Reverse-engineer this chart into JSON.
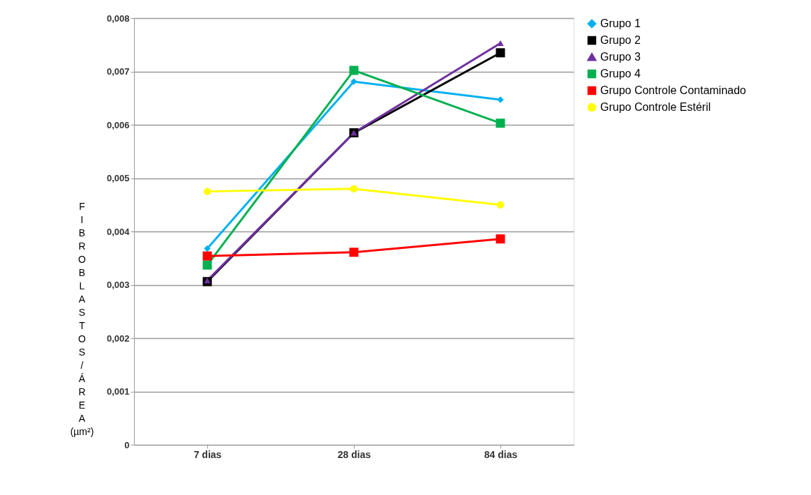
{
  "chart_data": {
    "type": "line",
    "ylabel": "FIBROBLASTOS/ÁREA (µm²)",
    "categories": [
      "7 dias",
      "28 dias",
      "84 dias"
    ],
    "series": [
      {
        "name": "Grupo 1",
        "color": "#00b0f0",
        "marker": "diamond",
        "values": [
          0.00368,
          0.00681,
          0.00647
        ]
      },
      {
        "name": "Grupo 2",
        "color": "#000000",
        "marker": "square",
        "values": [
          0.00306,
          0.00585,
          0.00735
        ]
      },
      {
        "name": "Grupo 3",
        "color": "#7030a0",
        "marker": "triangle",
        "values": [
          0.00308,
          0.00585,
          0.00753
        ]
      },
      {
        "name": "Grupo 4",
        "color": "#00b050",
        "marker": "square",
        "values": [
          0.00337,
          0.00702,
          0.00603
        ]
      },
      {
        "name": "Grupo Controle Contaminado",
        "color": "#ff0000",
        "marker": "square",
        "values": [
          0.00354,
          0.00361,
          0.00386
        ]
      },
      {
        "name": "Grupo Controle Estéril",
        "color": "#ffff00",
        "marker": "circle",
        "values": [
          0.00475,
          0.0048,
          0.0045
        ]
      }
    ],
    "ylim": [
      0,
      0.008
    ],
    "yticks": [
      0,
      {
        "value": 0.001,
        "label": "0,001"
      },
      {
        "value": 0.002,
        "label": "0,002"
      },
      {
        "value": 0.003,
        "label": "0,003"
      },
      {
        "value": 0.004,
        "label": "0,004"
      },
      {
        "value": 0.005,
        "label": "0,005"
      },
      {
        "value": 0.006,
        "label": "0,006"
      },
      {
        "value": 0.007,
        "label": "0,007"
      },
      {
        "value": 0.008,
        "label": "0,008"
      }
    ],
    "grid": "y",
    "legend": "right",
    "line_style": "solid"
  }
}
